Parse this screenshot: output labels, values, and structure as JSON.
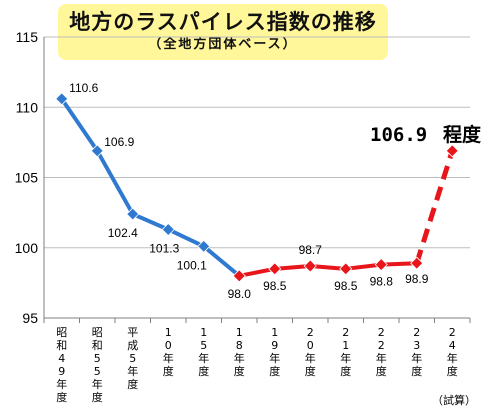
{
  "header": {
    "title": "地方のラスパイレス指数の推移",
    "subtitle": "（全地方団体ベース）"
  },
  "note": "（試算）",
  "colors": {
    "history_line": "#2f7ad0",
    "history_marker": "#2f7ad0",
    "recent_line": "#e8151b",
    "recent_marker": "#e8151b",
    "grid": "#bdbdbd",
    "axis": "#7f7f7f",
    "title_bg": "#fff799"
  },
  "chart_data": {
    "type": "line",
    "title": "地方のラスパイレス指数の推移",
    "subtitle": "（全地方団体ベース）",
    "xlabel": "",
    "ylabel": "",
    "ylim": [
      95,
      115
    ],
    "yticks": [
      95,
      100,
      105,
      110,
      115
    ],
    "grid": true,
    "legend": "none",
    "categories": [
      "昭和49年度",
      "昭和55年度",
      "平成5年度",
      "10年度",
      "15年度",
      "18年度",
      "19年度",
      "20年度",
      "21年度",
      "22年度",
      "23年度",
      "24年度"
    ],
    "series": [
      {
        "segment": "history",
        "values": [
          110.6,
          106.9,
          102.4,
          101.3,
          100.1,
          98.0,
          null,
          null,
          null,
          null,
          null,
          null
        ]
      },
      {
        "segment": "recent",
        "values": [
          null,
          null,
          null,
          null,
          null,
          98.0,
          98.5,
          98.7,
          98.5,
          98.8,
          98.9,
          null
        ]
      },
      {
        "segment": "estimate",
        "line_style": "dashed",
        "values": [
          null,
          null,
          null,
          null,
          null,
          null,
          null,
          null,
          null,
          null,
          98.9,
          106.9
        ]
      }
    ],
    "data_labels": [
      "110.6",
      "106.9",
      "102.4",
      "101.3",
      "100.1",
      "98.0",
      "98.5",
      "98.7",
      "98.5",
      "98.8",
      "98.9",
      "106.9"
    ],
    "estimate_annotation": {
      "value": "106.9",
      "suffix": "程度"
    }
  }
}
